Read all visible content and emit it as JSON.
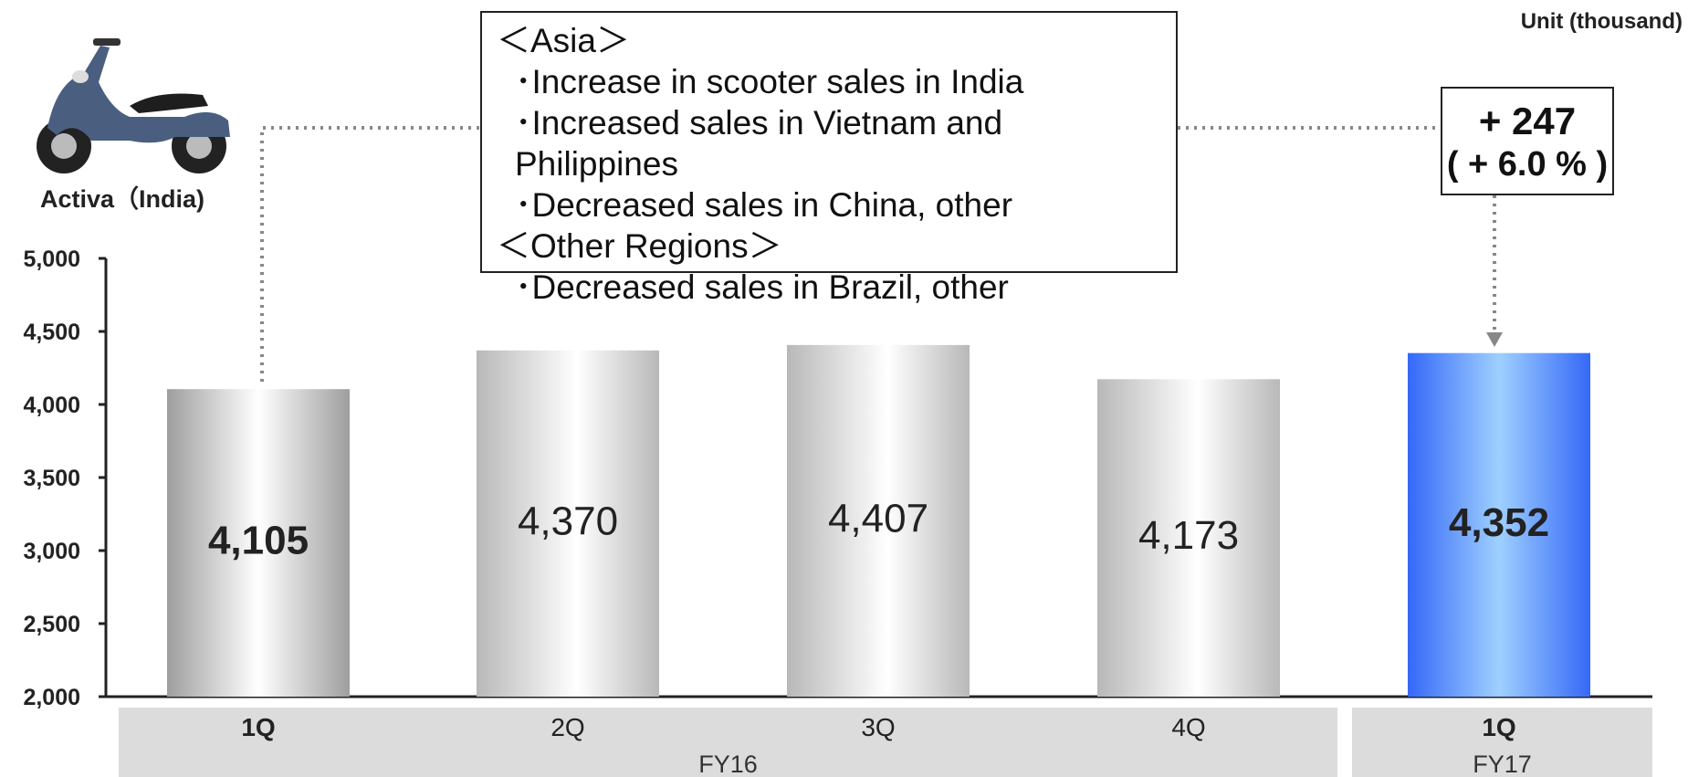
{
  "unit_label": "Unit (thousand)",
  "photo": {
    "caption": "Activa（India)",
    "icon": "scooter-icon"
  },
  "notes": {
    "groups": [
      {
        "header": "＜Asia＞",
        "items": [
          "･Increase in scooter sales in India",
          "･Increased sales in Vietnam and Philippines",
          "･Decreased sales in China, other"
        ]
      },
      {
        "header": "＜Other Regions＞",
        "items": [
          "･Decreased sales in Brazil, other"
        ]
      }
    ]
  },
  "change": {
    "amount": "+ 247",
    "percent": "( + 6.0 % )"
  },
  "chart_data": {
    "type": "bar",
    "title": "",
    "xlabel": "",
    "ylabel": "",
    "ylim": [
      2000,
      5000
    ],
    "yticks": [
      2000,
      2500,
      3000,
      3500,
      4000,
      4500,
      5000
    ],
    "ytick_labels": [
      "2,000",
      "2,500",
      "3,000",
      "3,500",
      "4,000",
      "4,500",
      "5,000"
    ],
    "categories": [
      "1Q",
      "2Q",
      "3Q",
      "4Q",
      "1Q"
    ],
    "values": [
      4105,
      4370,
      4407,
      4173,
      4352
    ],
    "value_labels": [
      "4,105",
      "4,370",
      "4,407",
      "4,173",
      "4,352"
    ],
    "highlight": [
      true,
      false,
      false,
      false,
      true
    ],
    "groups": [
      {
        "label": "FY16",
        "count": 4
      },
      {
        "label": "FY17",
        "count": 1
      }
    ],
    "grid": false,
    "legend": "none",
    "colors": {
      "gray": "#a6a6a6",
      "gray_light": "#ffffff",
      "blue": "#3a6ef5",
      "blue_light": "#a6d0ff",
      "axis_panel": "#dcdcdc"
    }
  }
}
